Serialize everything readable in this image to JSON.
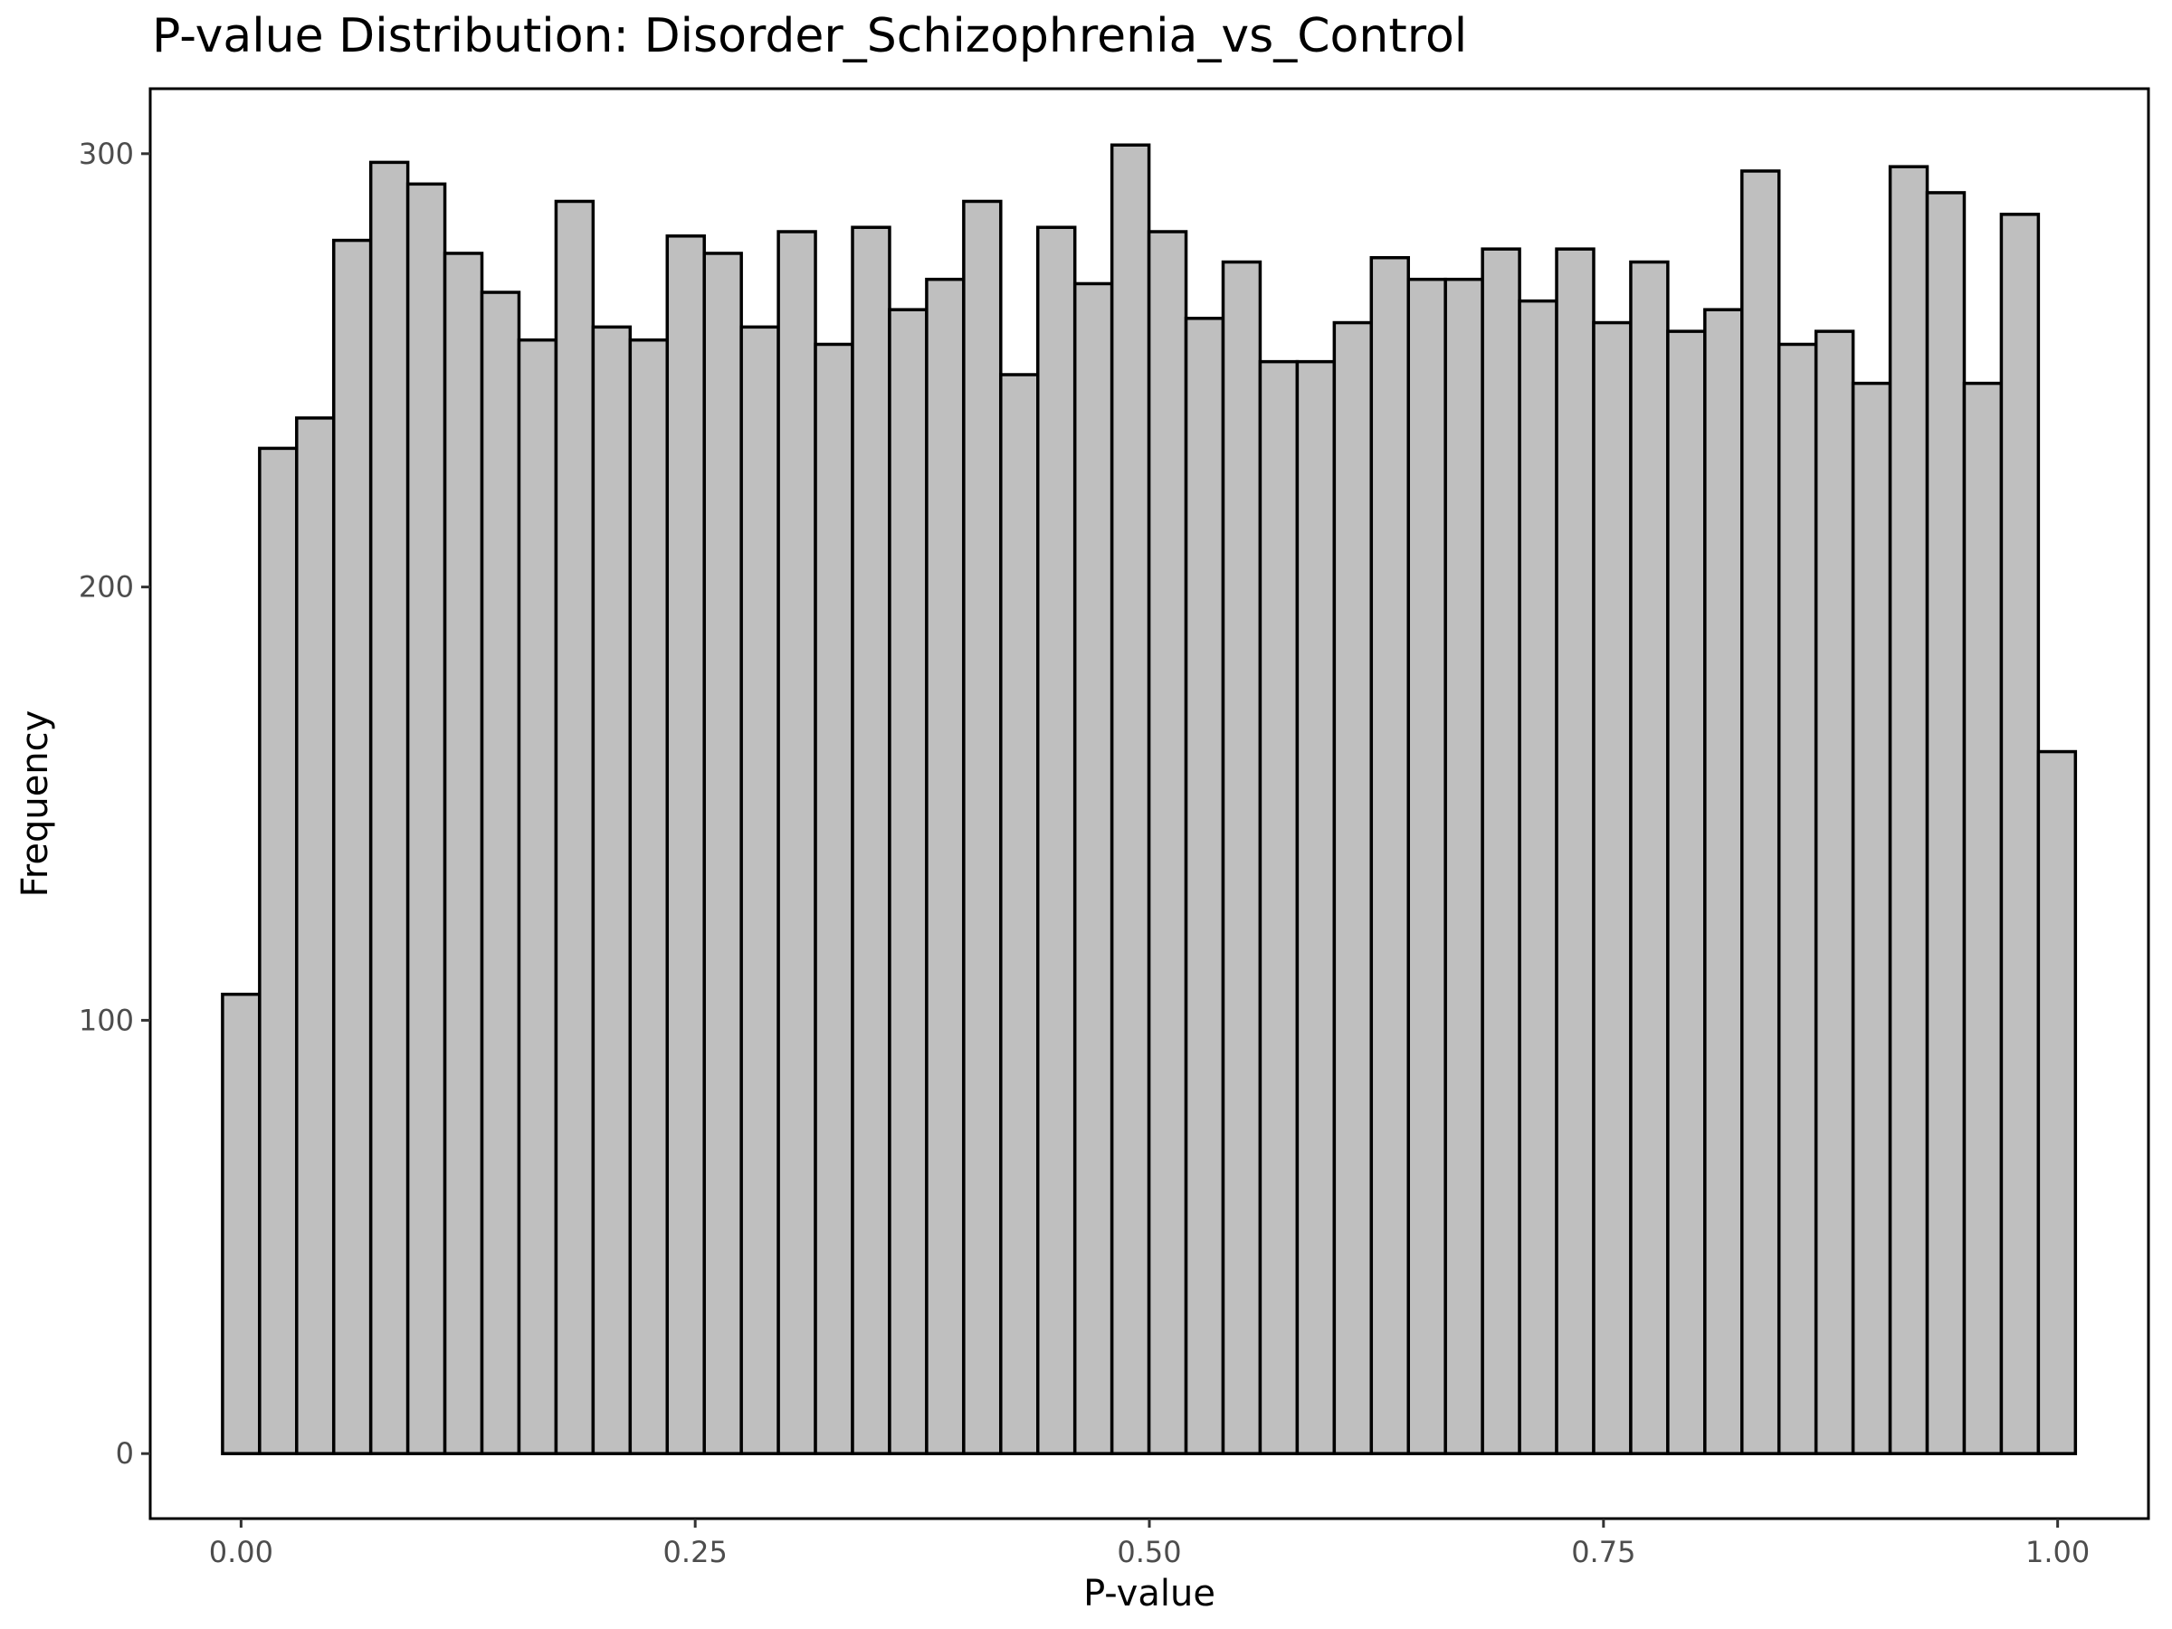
{
  "chart_data": {
    "type": "bar",
    "title": "P-value Distribution: Disorder_Schizophrenia_vs_Control",
    "xlabel": "P-value",
    "ylabel": "Frequency",
    "xlim": [
      -0.05,
      1.05
    ],
    "ylim": [
      -15,
      315
    ],
    "x_ticks": [
      0.0,
      0.25,
      0.5,
      0.75,
      1.0
    ],
    "x_tick_labels": [
      "0.00",
      "0.25",
      "0.50",
      "0.75",
      "1.00"
    ],
    "y_ticks": [
      0,
      100,
      200,
      300
    ],
    "y_tick_labels": [
      "0",
      "100",
      "200",
      "300"
    ],
    "bin_width": 0.0204,
    "bin_start": -0.0102,
    "values": [
      106,
      232,
      239,
      280,
      298,
      293,
      277,
      268,
      257,
      289,
      260,
      257,
      281,
      277,
      260,
      282,
      256,
      283,
      264,
      271,
      289,
      249,
      283,
      270,
      302,
      282,
      262,
      275,
      252,
      252,
      261,
      276,
      271,
      271,
      278,
      266,
      278,
      261,
      275,
      259,
      264,
      296,
      256,
      259,
      247,
      297,
      291,
      247,
      286,
      162
    ],
    "bar_fill": "#bfbfbf",
    "bar_stroke": "#000000",
    "grid": false,
    "legend": "none"
  }
}
